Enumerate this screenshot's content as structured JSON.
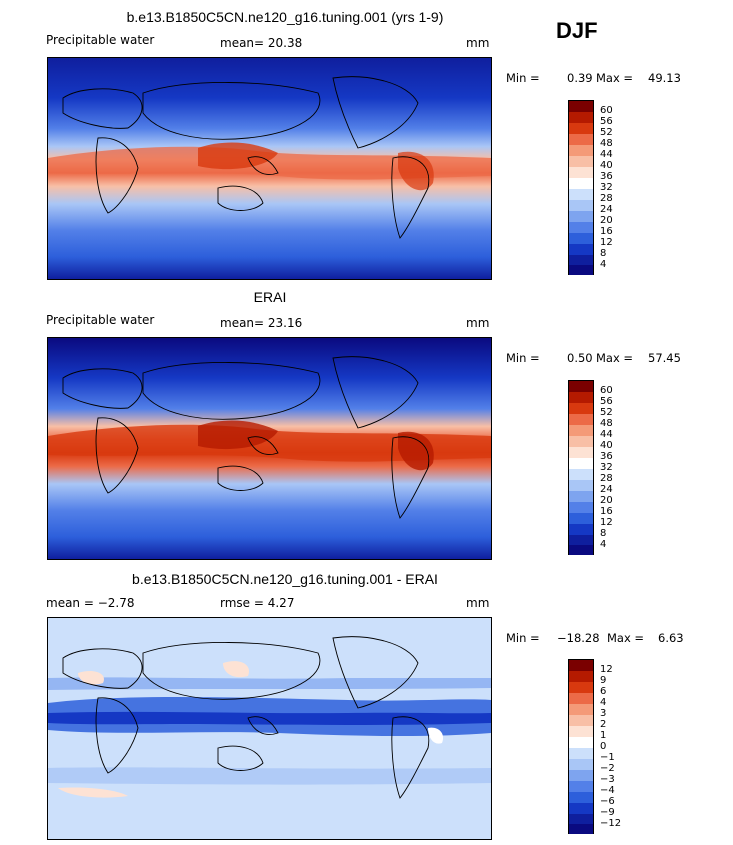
{
  "season": "DJF",
  "panels": [
    {
      "title": "b.e13.B1850C5CN.ne120_g16.tuning.001 (yrs 1-9)",
      "left": "Precipitable water",
      "mid": "mean=  20.38",
      "right": "mm",
      "min_label": "Min =",
      "min_value": "0.39",
      "max_label": "Max =",
      "max_value": "49.13",
      "colorbar": [
        "60",
        "56",
        "52",
        "48",
        "44",
        "40",
        "36",
        "32",
        "28",
        "24",
        "20",
        "16",
        "12",
        "8",
        "4"
      ]
    },
    {
      "title": "ERAI",
      "left": "Precipitable water",
      "mid": "mean=  23.16",
      "right": "mm",
      "min_label": "Min =",
      "min_value": "0.50",
      "max_label": "Max =",
      "max_value": "57.45",
      "colorbar": [
        "60",
        "56",
        "52",
        "48",
        "44",
        "40",
        "36",
        "32",
        "28",
        "24",
        "20",
        "16",
        "12",
        "8",
        "4"
      ]
    },
    {
      "title": "b.e13.B1850C5CN.ne120_g16.tuning.001 - ERAI",
      "left": "mean =  −2.78",
      "mid": "rmse =   4.27",
      "right": "mm",
      "min_label": "Min =",
      "min_value": "−18.28",
      "max_label": "Max =",
      "max_value": "6.63",
      "colorbar": [
        "12",
        "9",
        "6",
        "4",
        "3",
        "2",
        "1",
        "0",
        "−1",
        "−2",
        "−3",
        "−4",
        "−6",
        "−9",
        "−12"
      ]
    }
  ],
  "colors": {
    "scale": [
      "#7a0000",
      "#b51a00",
      "#d8390f",
      "#ec6a47",
      "#f49a78",
      "#f8bfa6",
      "#fde2d4",
      "#ffffff",
      "#cce0fb",
      "#a9c6f6",
      "#7ea4ef",
      "#5380e8",
      "#2d5fdb",
      "#1538c4",
      "#0f1f9e",
      "#0a0a80"
    ]
  }
}
